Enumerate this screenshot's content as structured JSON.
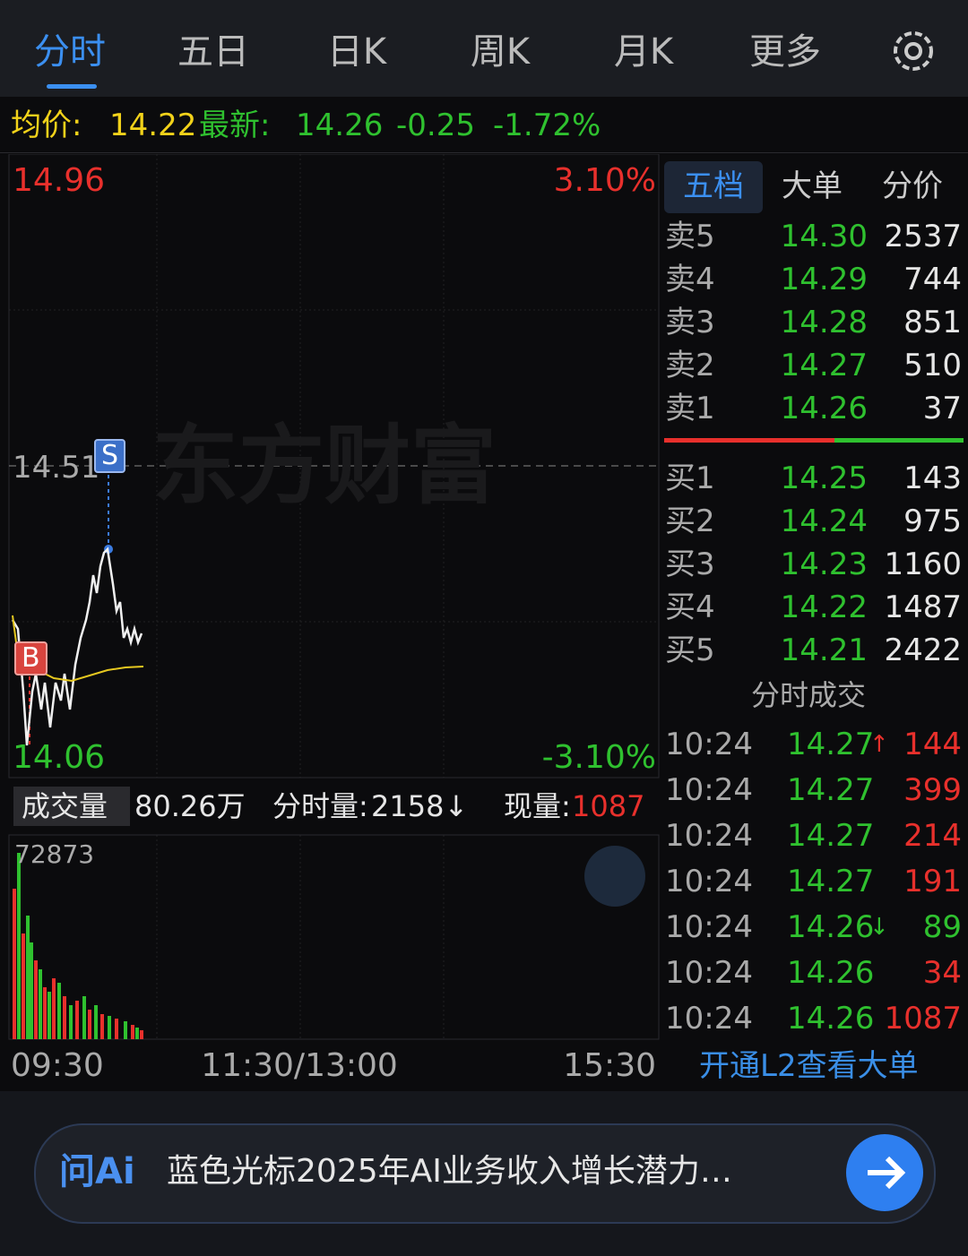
{
  "tabs": [
    "分时",
    "五日",
    "日K",
    "周K",
    "月K",
    "更多"
  ],
  "quote": {
    "avg_label": "均价:",
    "avg": "14.22",
    "latest_label": "最新:",
    "latest": "14.26",
    "change": "-0.25",
    "change_pct": "-1.72%"
  },
  "chart": {
    "price_high": "14.96",
    "pct_high": "3.10%",
    "price_mid": "14.51",
    "price_low": "14.06",
    "pct_low": "-3.10%",
    "sell_marker": "S",
    "buy_marker": "B",
    "watermark": "东方财富"
  },
  "volume": {
    "selector": "成交量",
    "total": "80.26万",
    "period_label": "分时量:",
    "period": "2158↓",
    "current_label": "现量:",
    "current": "1087",
    "max": "72873"
  },
  "time_axis": [
    "09:30",
    "11:30/13:00",
    "15:30"
  ],
  "orderbook": {
    "tabs": [
      "五档",
      "大单",
      "分价"
    ],
    "asks": [
      {
        "label": "卖5",
        "price": "14.30",
        "volume": "2537"
      },
      {
        "label": "卖4",
        "price": "14.29",
        "volume": "744"
      },
      {
        "label": "卖3",
        "price": "14.28",
        "volume": "851"
      },
      {
        "label": "卖2",
        "price": "14.27",
        "volume": "510"
      },
      {
        "label": "卖1",
        "price": "14.26",
        "volume": "37"
      }
    ],
    "bids": [
      {
        "label": "买1",
        "price": "14.25",
        "volume": "143"
      },
      {
        "label": "买2",
        "price": "14.24",
        "volume": "975"
      },
      {
        "label": "买3",
        "price": "14.23",
        "volume": "1160"
      },
      {
        "label": "买4",
        "price": "14.22",
        "volume": "1487"
      },
      {
        "label": "买5",
        "price": "14.21",
        "volume": "2422"
      }
    ]
  },
  "trades": {
    "title": "分时成交",
    "rows": [
      {
        "time": "10:24",
        "price": "14.27",
        "arrow": "↑",
        "volume": "144",
        "color": "#e8302c"
      },
      {
        "time": "10:24",
        "price": "14.27",
        "volume": "399",
        "color": "#e8302c"
      },
      {
        "time": "10:24",
        "price": "14.27",
        "volume": "214",
        "color": "#e8302c"
      },
      {
        "time": "10:24",
        "price": "14.27",
        "volume": "191",
        "color": "#e8302c"
      },
      {
        "time": "10:24",
        "price": "14.26",
        "arrow": "↓",
        "volume": "89",
        "color": "#2fc12f"
      },
      {
        "time": "10:24",
        "price": "14.26",
        "volume": "34",
        "color": "#e8302c"
      },
      {
        "time": "10:24",
        "price": "14.26",
        "volume": "1087",
        "color": "#e8302c"
      }
    ]
  },
  "promo": "开通L2查看大单",
  "ai": {
    "brand": "问Ai",
    "text": "蓝色光标2025年AI业务收入增长潜力…"
  }
}
